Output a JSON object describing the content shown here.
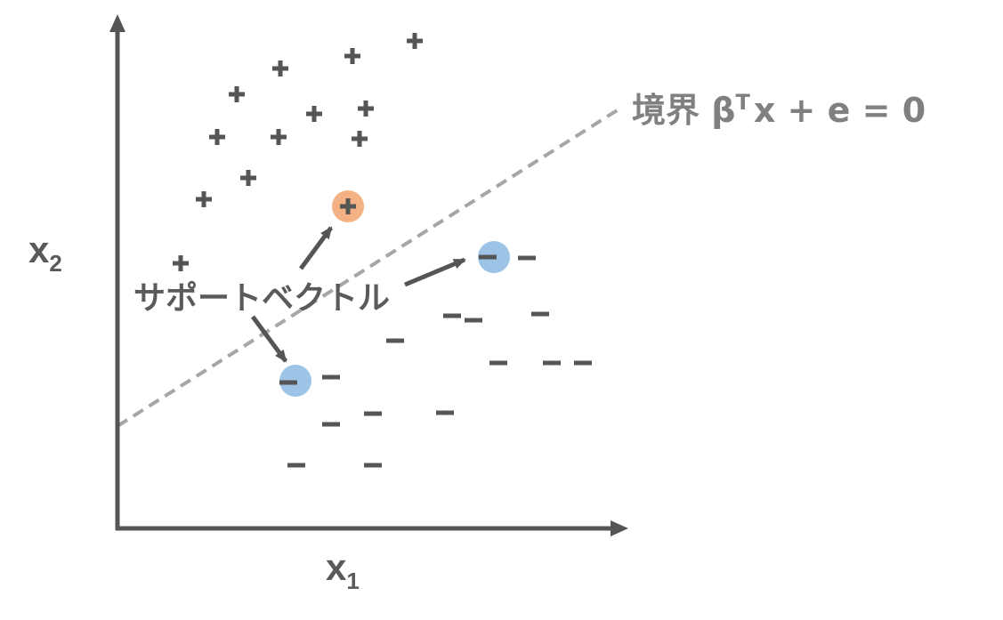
{
  "axes": {
    "x_label": "x",
    "x_sub": "1",
    "y_label": "x",
    "y_sub": "2"
  },
  "boundary": {
    "label_prefix": "境界 β",
    "label_sup": "T",
    "label_suffix": "x + e = 0"
  },
  "support_label": "サポートベクトル",
  "marks": {
    "plus_glyph": "+",
    "minus_glyph": "–"
  },
  "colors": {
    "ink": "#555555",
    "boundary": "#a6a6a6",
    "support_positive": "#f4b183",
    "support_negative": "#9dc3e6"
  }
}
